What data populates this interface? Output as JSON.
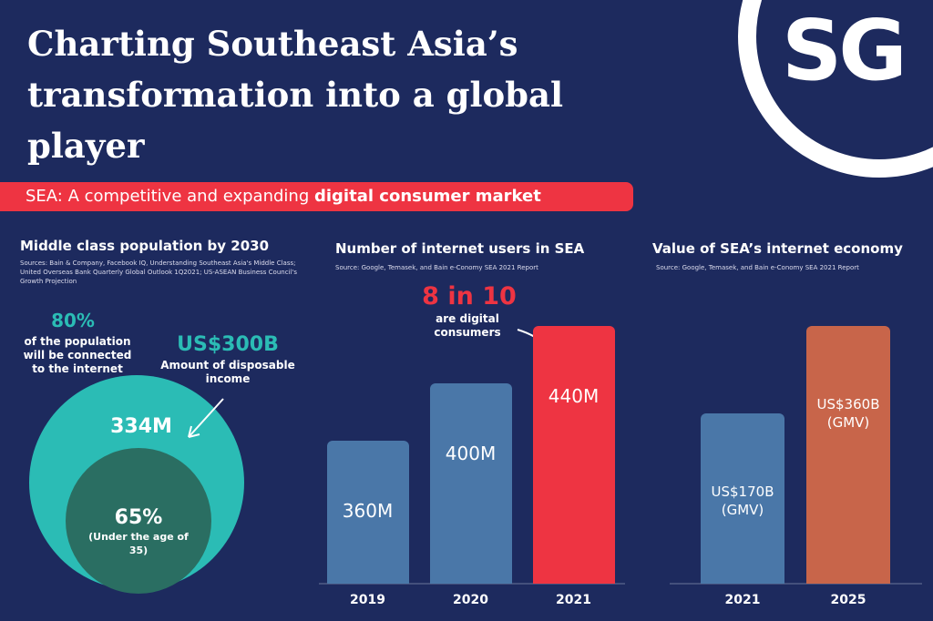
{
  "header": {
    "title": "Charting Southeast Asia’s transformation into a global player",
    "logo": "SG"
  },
  "banner": {
    "text": "SEA: A competitive and expanding",
    "emphasis": "digital consumer market"
  },
  "middle_class": {
    "title": "Middle class population by 2030",
    "sources": "Sources: Bain & Company, Facebook IQ, Understanding Southeast Asia's Middle Class; United Overseas Bank Quarterly Global Outlook 1Q2021; US-ASEAN Business Council's Growth Projection",
    "connected": {
      "value": "80%",
      "label": "of the population will be connected to the internet"
    },
    "income": {
      "value": "US$300B",
      "label": "Amount of disposable income"
    },
    "population": "334M",
    "young": {
      "value": "65%",
      "label": "(Under the age of 35)"
    }
  },
  "chart_data": [
    {
      "type": "bar",
      "title": "Number of internet users in SEA",
      "subtitle": "Source: Google, Temasek, and Bain e-Conomy SEA 2021 Report",
      "categories": [
        "2019",
        "2020",
        "2021"
      ],
      "values": [
        360,
        400,
        440
      ],
      "value_labels": [
        "360M",
        "400M",
        "440M"
      ],
      "colors": [
        "#4a77a8",
        "#4a77a8",
        "#ee3442"
      ],
      "ylim": [
        260,
        440
      ],
      "annotation": "8 in 10",
      "annotation_note": "are digital consumers"
    },
    {
      "type": "bar",
      "title": "Value of SEA’s internet economy",
      "subtitle": "Source: Google, Temasek, and Bain e-Conomy SEA 2021 Report",
      "categories": [
        "2021",
        "2025"
      ],
      "values": [
        170,
        360
      ],
      "value_labels": [
        "US$170B (GMV)",
        "US$360B (GMV)"
      ],
      "colors": [
        "#4a77a8",
        "#c8654a"
      ],
      "ylim": [
        -200,
        360
      ]
    }
  ]
}
